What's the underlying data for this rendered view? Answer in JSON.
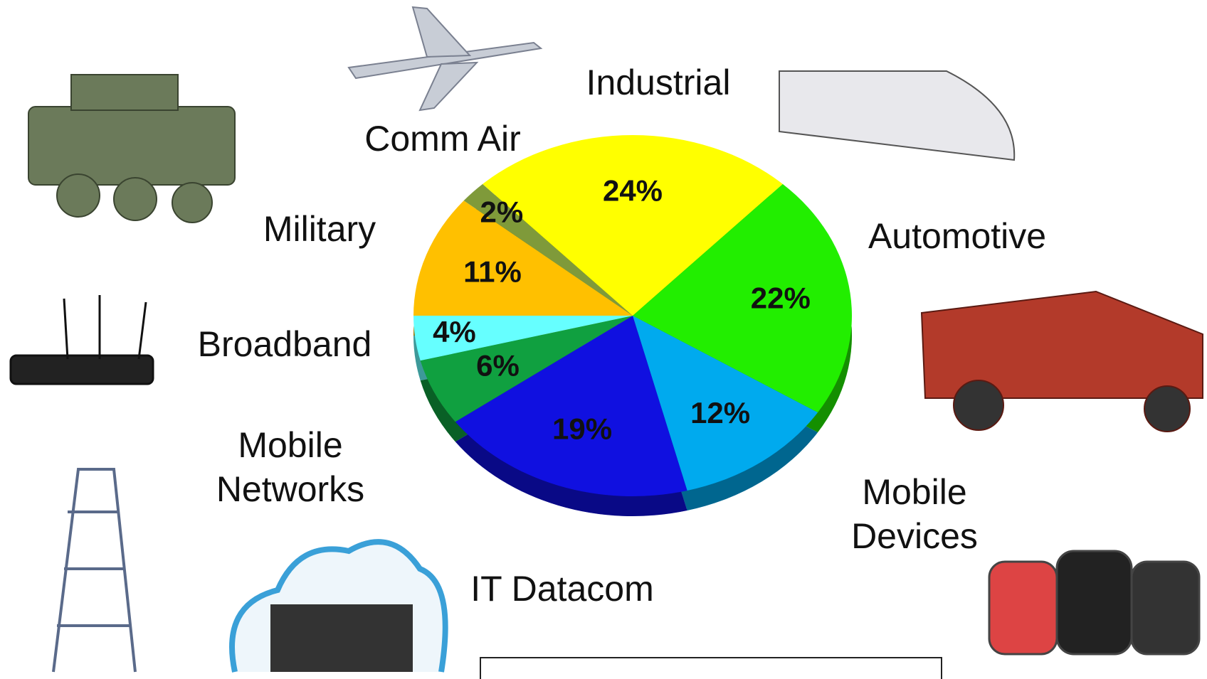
{
  "chart_data": {
    "type": "pie",
    "categories": [
      "Military",
      "Comm Air",
      "Industrial",
      "Automotive",
      "Mobile Devices",
      "IT Datacom",
      "Mobile Networks",
      "Broadband"
    ],
    "values": [
      11,
      2,
      24,
      22,
      12,
      19,
      6,
      4
    ],
    "value_labels": [
      "11%",
      "2%",
      "24%",
      "22%",
      "12%",
      "19%",
      "6%",
      "4%"
    ],
    "colors": [
      "#ffc000",
      "#7f9a3a",
      "#ffff00",
      "#22ee00",
      "#00aaee",
      "#1010e0",
      "#10a040",
      "#66ffff"
    ]
  }
}
